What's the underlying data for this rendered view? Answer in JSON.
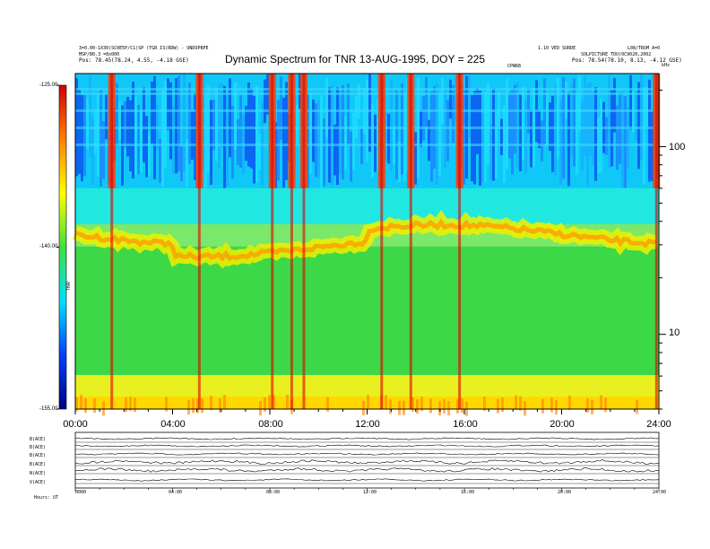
{
  "header": {
    "left_line1": "3=0.00-1X30(SC0E5P/C1)SP (TGR IS(RDW) - UNDOPBPE",
    "left_line2": "MSP/B0.3 =8x000",
    "left_line3_label": "Pos:",
    "left_line3_value": "78.45(78.24, 4.55, -4.18 GSE)",
    "right_line1": "1.10 VED SURDE",
    "right_line2": "L08/TRUM A=0",
    "right_line3": "SOLPICTURE TDU(0C9020,2002",
    "right_line4_label": "Pos:",
    "right_line4_value": "78.54(78.10, 8.13, -4.12 GSE)",
    "center_unit": "CPWR8",
    "corner_unit": "kHz"
  },
  "chart_data": [
    {
      "type": "heatmap",
      "title": "Dynamic Spectrum for TNR 13-AUG-1995, DOY = 225",
      "xlabel": "",
      "ylabel": "",
      "x_tick_labels": [
        "00:00",
        "04:00",
        "08:00",
        "12:00",
        "16:00",
        "20:00",
        "24:00"
      ],
      "x_range_hours": [
        0,
        24
      ],
      "y_scale": "log",
      "y_range_khz": [
        4,
        245
      ],
      "y_tick_labels": [
        "100",
        "10"
      ],
      "y_tick_values": [
        100,
        10
      ],
      "colorbar": {
        "label": "TNR",
        "range_db": [
          -155,
          -125
        ],
        "tick_labels": [
          "-125.00",
          "-140.00",
          "-155.00"
        ],
        "tick_values": [
          -125,
          -140,
          -155
        ],
        "colors": [
          "#d00000",
          "#ff8000",
          "#ffff00",
          "#40e040",
          "#00e0ff",
          "#0040ff",
          "#000080"
        ]
      },
      "features": {
        "upper_band_boundary_khz": 60,
        "plasma_line_khz": 34,
        "bright_bursts_hours": [
          1.5,
          5.1,
          8.1,
          8.9,
          9.4,
          12.6,
          13.8,
          15.8,
          23.9
        ]
      }
    },
    {
      "type": "line",
      "title": "",
      "series_labels": [
        "B(ACE)",
        "B(ACE)",
        "B(ACE)",
        "B(ACE)",
        "N(ACE)",
        "V(ACE)"
      ],
      "x_tick_labels": [
        "0000",
        "04:00",
        "08:00",
        "12:00",
        "16:00",
        "20:00",
        "24:00"
      ],
      "footer_label": "Hours: UT"
    }
  ]
}
